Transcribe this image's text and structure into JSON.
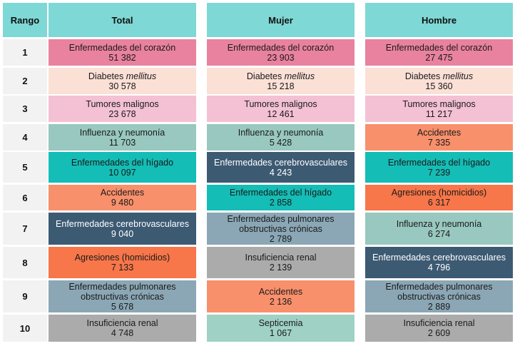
{
  "chart_data": {
    "type": "table",
    "headers": {
      "rank": "Rango",
      "total": "Total",
      "mujer": "Mujer",
      "hombre": "Hombre"
    },
    "ranks": [
      "1",
      "2",
      "3",
      "4",
      "5",
      "6",
      "7",
      "8",
      "9",
      "10"
    ],
    "columns": {
      "total": [
        {
          "cause": "Enfermedades del corazón",
          "value": "51 382",
          "color": "#e9829e",
          "dark": false
        },
        {
          "cause": "Diabetes",
          "cause_italic": "mellitus",
          "value": "30 578",
          "color": "#fbe0d6",
          "dark": false
        },
        {
          "cause": "Tumores malignos",
          "value": "23 678",
          "color": "#f3c1d3",
          "dark": false
        },
        {
          "cause": "Influenza y neumonía",
          "value": "11 703",
          "color": "#98c8bf",
          "dark": false
        },
        {
          "cause": "Enfermedades del hígado",
          "value": "10 097",
          "color": "#14bdb5",
          "dark": false
        },
        {
          "cause": "Accidentes",
          "value": "9 480",
          "color": "#f8906c",
          "dark": false
        },
        {
          "cause": "Enfermedades cerebrovasculares",
          "value": "9 040",
          "color": "#3d5a73",
          "dark": true
        },
        {
          "cause": "Agresiones (homicidios)",
          "value": "7 133",
          "color": "#f7764a",
          "dark": false
        },
        {
          "cause": "Enfermedades pulmonares obstructivas crónicas",
          "value": "5 678",
          "color": "#8ba7b5",
          "dark": false
        },
        {
          "cause": "Insuficiencia renal",
          "value": "4 748",
          "color": "#ababab",
          "dark": false
        }
      ],
      "mujer": [
        {
          "cause": "Enfermedades del corazón",
          "value": "23 903",
          "color": "#e9829e",
          "dark": false
        },
        {
          "cause": "Diabetes",
          "cause_italic": "mellitus",
          "value": "15 218",
          "color": "#fbe0d6",
          "dark": false
        },
        {
          "cause": "Tumores malignos",
          "value": "12 461",
          "color": "#f3c1d3",
          "dark": false
        },
        {
          "cause": "Influenza y neumonía",
          "value": "5 428",
          "color": "#98c8bf",
          "dark": false
        },
        {
          "cause": "Enfermedades cerebrovasculares",
          "value": "4 243",
          "color": "#3d5a73",
          "dark": true
        },
        {
          "cause": "Enfermedades del hígado",
          "value": "2 858",
          "color": "#14bdb5",
          "dark": false
        },
        {
          "cause": "Enfermedades pulmonares obstructivas crónicas",
          "value": "2 789",
          "color": "#8ba7b5",
          "dark": false
        },
        {
          "cause": "Insuficiencia renal",
          "value": "2 139",
          "color": "#ababab",
          "dark": false
        },
        {
          "cause": "Accidentes",
          "value": "2 136",
          "color": "#f8906c",
          "dark": false
        },
        {
          "cause": "Septicemia",
          "value": "1 067",
          "color": "#9fd1c5",
          "dark": false
        }
      ],
      "hombre": [
        {
          "cause": "Enfermedades del corazón",
          "value": "27 475",
          "color": "#e9829e",
          "dark": false
        },
        {
          "cause": "Diabetes",
          "cause_italic": "mellitus",
          "value": "15 360",
          "color": "#fbe0d6",
          "dark": false
        },
        {
          "cause": "Tumores malignos",
          "value": "11 217",
          "color": "#f3c1d3",
          "dark": false
        },
        {
          "cause": "Accidentes",
          "value": "7 335",
          "color": "#f8906c",
          "dark": false
        },
        {
          "cause": "Enfermedades del hígado",
          "value": "7 239",
          "color": "#14bdb5",
          "dark": false
        },
        {
          "cause": "Agresiones (homicidios)",
          "value": "6 317",
          "color": "#f7764a",
          "dark": false
        },
        {
          "cause": "Influenza y neumonía",
          "value": "6 274",
          "color": "#98c8bf",
          "dark": false
        },
        {
          "cause": "Enfermedades cerebrovasculares",
          "value": "4 796",
          "color": "#3d5a73",
          "dark": true
        },
        {
          "cause": "Enfermedades pulmonares obstructivas crónicas",
          "value": "2 889",
          "color": "#8ba7b5",
          "dark": false
        },
        {
          "cause": "Insuficiencia renal",
          "value": "2 609",
          "color": "#ababab",
          "dark": false
        }
      ]
    }
  }
}
